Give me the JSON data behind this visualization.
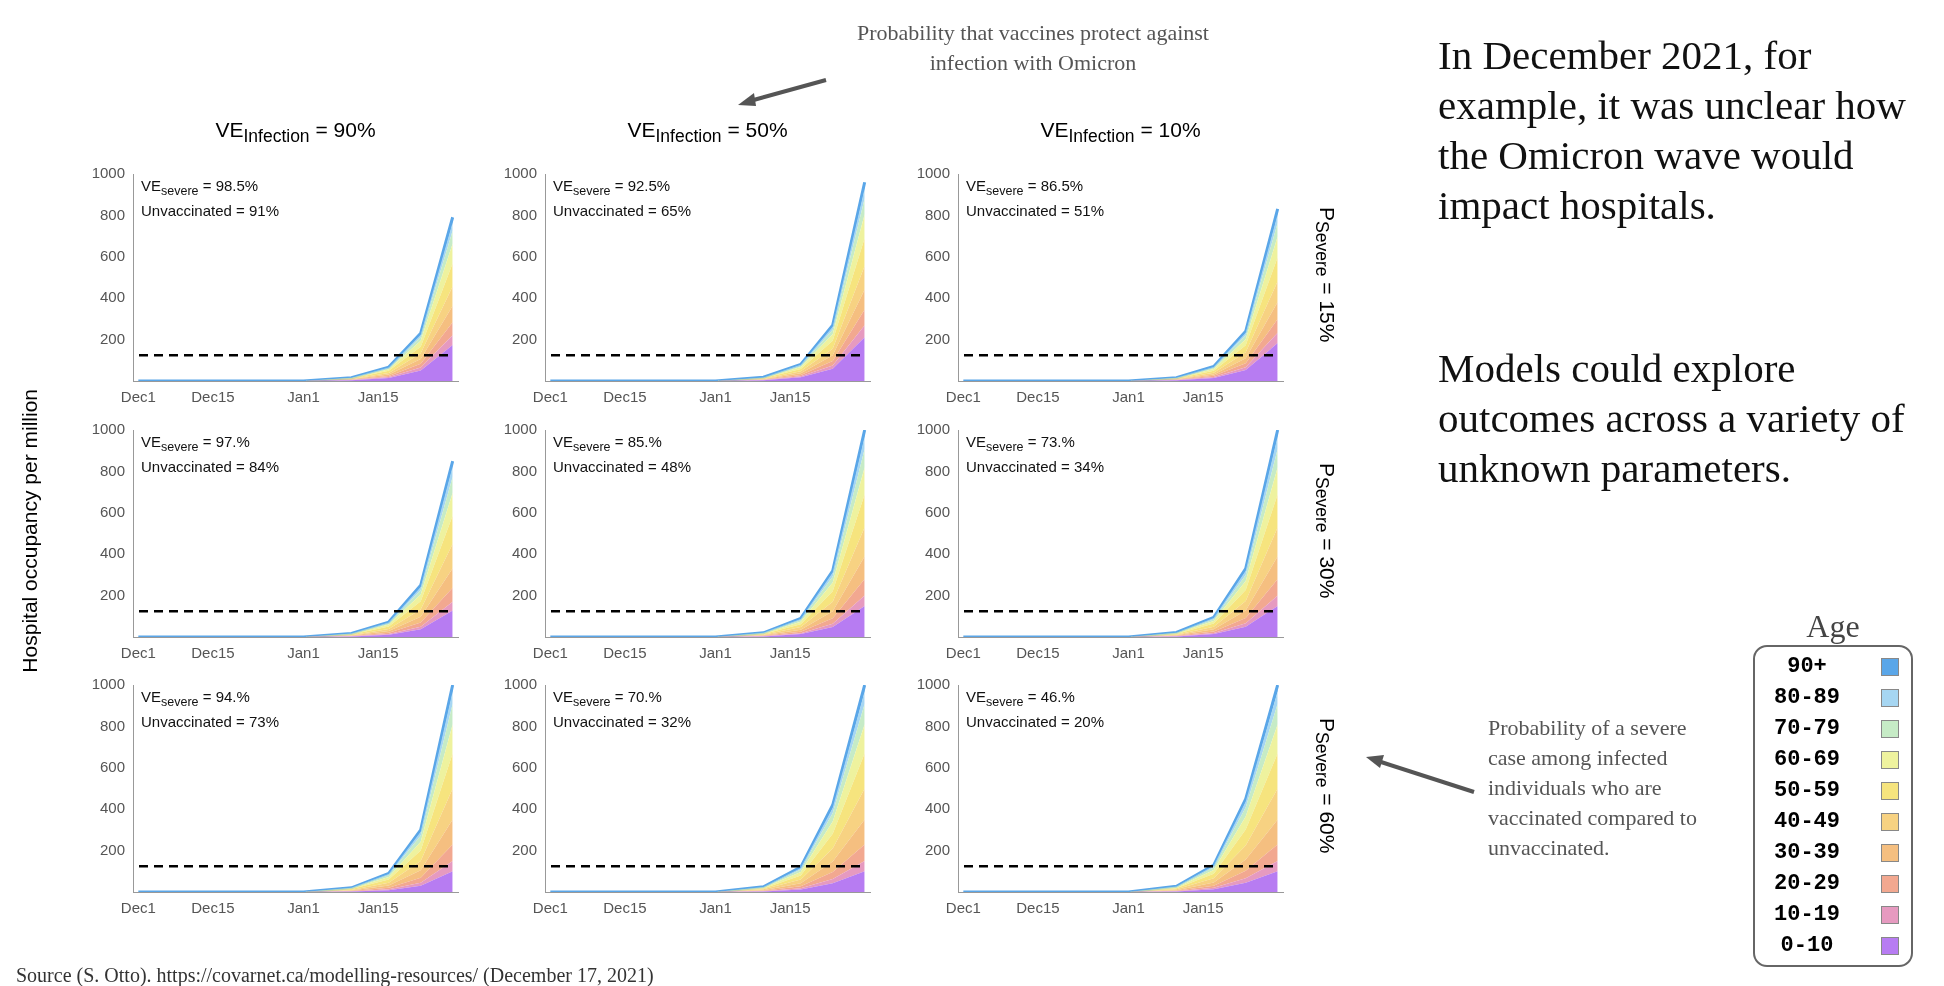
{
  "chart_data": [
    {
      "type": "area",
      "title": "VE$_{Infection}$ = 90%",
      "stacked": true,
      "marker": "none",
      "x": [
        "2021-12-01",
        "2022-01-01",
        "2022-01-10",
        "2022-01-17",
        "2022-01-23",
        "2022-01-29"
      ],
      "xlim": [
        "2021-11-30",
        "2022-01-30"
      ],
      "xticks": [
        {
          "value": "2021-12-01",
          "label": "Dec1"
        },
        {
          "value": "2021-12-15",
          "label": "Dec15"
        },
        {
          "value": "2022-01-01",
          "label": "Jan1"
        },
        {
          "value": "2022-01-15",
          "label": "Jan15"
        }
      ],
      "ylim": [
        0,
        1000
      ],
      "yticks": [
        200,
        400,
        600,
        800,
        1000
      ],
      "ref_lines": [
        {
          "axis": "y",
          "value": 125,
          "color": "#000000",
          "line_style": "dashed"
        }
      ],
      "annotations": [
        "VE$_{severe}$ = 98.5%",
        "Unvaccinated = 91%"
      ],
      "series": [
        {
          "color": "#b77cf2",
          "values": [
            0,
            0,
            4,
            15,
            51,
            174
          ]
        },
        {
          "color": "#e69ac0",
          "values": [
            0,
            0,
            1,
            4,
            14,
            47
          ]
        },
        {
          "color": "#f2a890",
          "values": [
            0,
            0,
            1,
            5,
            18,
            63
          ]
        },
        {
          "color": "#f5bf80",
          "values": [
            0,
            0,
            2,
            7,
            23,
            79
          ]
        },
        {
          "color": "#f7d282",
          "values": [
            0,
            0,
            2,
            8,
            28,
            95
          ]
        },
        {
          "color": "#f6e47e",
          "values": [
            0,
            0,
            2,
            10,
            32,
            111
          ]
        },
        {
          "color": "#eef29e",
          "values": [
            0,
            0,
            2,
            8,
            28,
            95
          ]
        },
        {
          "color": "#c6ebc6",
          "values": [
            0,
            0,
            1,
            5,
            18,
            63
          ]
        },
        {
          "color": "#a6d6f2",
          "values": [
            0,
            0,
            1,
            3,
            12,
            40
          ]
        },
        {
          "color": "#5aa6e8",
          "values": [
            0,
            0,
            0,
            2,
            7,
            24
          ]
        }
      ]
    },
    {
      "type": "area",
      "title": "VE$_{Infection}$ = 50%",
      "stacked": true,
      "marker": "none",
      "x": [
        "2021-12-01",
        "2022-01-01",
        "2022-01-10",
        "2022-01-17",
        "2022-01-23",
        "2022-01-29"
      ],
      "xlim": [
        "2021-11-30",
        "2022-01-30"
      ],
      "xticks": [
        {
          "value": "2021-12-01",
          "label": "Dec1"
        },
        {
          "value": "2021-12-15",
          "label": "Dec15"
        },
        {
          "value": "2022-01-01",
          "label": "Jan1"
        },
        {
          "value": "2022-01-15",
          "label": "Jan15"
        }
      ],
      "ylim": [
        0,
        1000
      ],
      "yticks": [
        200,
        400,
        600,
        800,
        1000
      ],
      "ref_lines": [
        {
          "axis": "y",
          "value": 125,
          "color": "#000000",
          "line_style": "dashed"
        }
      ],
      "annotations": [
        "VE$_{severe}$ = 92.5%",
        "Unvaccinated = 65%"
      ],
      "series": [
        {
          "color": "#b77cf2",
          "values": [
            0,
            0,
            4,
            18,
            59,
            211
          ]
        },
        {
          "color": "#e69ac0",
          "values": [
            0,
            0,
            1,
            5,
            16,
            58
          ]
        },
        {
          "color": "#f2a890",
          "values": [
            0,
            0,
            1,
            6,
            22,
            77
          ]
        },
        {
          "color": "#f5bf80",
          "values": [
            0,
            0,
            2,
            8,
            27,
            96
          ]
        },
        {
          "color": "#f7d282",
          "values": [
            0,
            0,
            2,
            10,
            32,
            115
          ]
        },
        {
          "color": "#f6e47e",
          "values": [
            0,
            0,
            3,
            11,
            38,
            134
          ]
        },
        {
          "color": "#eef29e",
          "values": [
            0,
            0,
            2,
            10,
            32,
            115
          ]
        },
        {
          "color": "#c6ebc6",
          "values": [
            0,
            0,
            1,
            6,
            22,
            77
          ]
        },
        {
          "color": "#a6d6f2",
          "values": [
            0,
            0,
            1,
            4,
            14,
            48
          ]
        },
        {
          "color": "#5aa6e8",
          "values": [
            0,
            0,
            1,
            2,
            8,
            29
          ]
        }
      ]
    },
    {
      "type": "area",
      "title": "VE$_{Infection}$ = 10%",
      "stacked": true,
      "marker": "none",
      "x": [
        "2021-12-01",
        "2022-01-01",
        "2022-01-10",
        "2022-01-17",
        "2022-01-23",
        "2022-01-29"
      ],
      "xlim": [
        "2021-11-30",
        "2022-01-30"
      ],
      "xticks": [
        {
          "value": "2021-12-01",
          "label": "Dec1"
        },
        {
          "value": "2021-12-15",
          "label": "Dec15"
        },
        {
          "value": "2022-01-01",
          "label": "Jan1"
        },
        {
          "value": "2022-01-15",
          "label": "Jan15"
        }
      ],
      "ylim": [
        0,
        1000
      ],
      "yticks": [
        200,
        400,
        600,
        800,
        1000
      ],
      "ref_lines": [
        {
          "axis": "y",
          "value": 125,
          "color": "#000000",
          "line_style": "dashed"
        }
      ],
      "annotations": [
        "VE$_{severe}$ = 86.5%",
        "Unvaccinated = 51%",
        "P$_{Severe}$ = 15%"
      ],
      "series": [
        {
          "color": "#b77cf2",
          "values": [
            0,
            0,
            4,
            15,
            53,
            183
          ]
        },
        {
          "color": "#e69ac0",
          "values": [
            0,
            0,
            1,
            4,
            14,
            50
          ]
        },
        {
          "color": "#f2a890",
          "values": [
            0,
            0,
            1,
            6,
            19,
            66
          ]
        },
        {
          "color": "#f5bf80",
          "values": [
            0,
            0,
            2,
            7,
            24,
            83
          ]
        },
        {
          "color": "#f7d282",
          "values": [
            0,
            0,
            2,
            8,
            29,
            100
          ]
        },
        {
          "color": "#f6e47e",
          "values": [
            0,
            0,
            2,
            10,
            34,
            116
          ]
        },
        {
          "color": "#eef29e",
          "values": [
            0,
            0,
            2,
            8,
            29,
            100
          ]
        },
        {
          "color": "#c6ebc6",
          "values": [
            0,
            0,
            1,
            6,
            19,
            66
          ]
        },
        {
          "color": "#a6d6f2",
          "values": [
            0,
            0,
            1,
            4,
            12,
            42
          ]
        },
        {
          "color": "#5aa6e8",
          "values": [
            0,
            0,
            0,
            2,
            7,
            25
          ]
        }
      ]
    },
    {
      "type": "area",
      "ylabel": "Hospital occupancy per million",
      "stacked": true,
      "marker": "none",
      "x": [
        "2021-12-01",
        "2022-01-01",
        "2022-01-10",
        "2022-01-17",
        "2022-01-23",
        "2022-01-29"
      ],
      "xlim": [
        "2021-11-30",
        "2022-01-30"
      ],
      "xticks": [
        {
          "value": "2021-12-01",
          "label": "Dec1"
        },
        {
          "value": "2021-12-15",
          "label": "Dec15"
        },
        {
          "value": "2022-01-01",
          "label": "Jan1"
        },
        {
          "value": "2022-01-15",
          "label": "Jan15"
        }
      ],
      "ylim": [
        0,
        1000
      ],
      "yticks": [
        200,
        400,
        600,
        800,
        1000
      ],
      "ref_lines": [
        {
          "axis": "y",
          "value": 125,
          "color": "#000000",
          "line_style": "dashed"
        }
      ],
      "annotations": [
        "VE$_{severe}$ = 97.%",
        "Unvaccinated = 84%"
      ],
      "series": [
        {
          "color": "#b77cf2",
          "values": [
            0,
            0,
            3,
            11,
            38,
            128
          ]
        },
        {
          "color": "#e69ac0",
          "values": [
            0,
            0,
            1,
            4,
            12,
            42
          ]
        },
        {
          "color": "#f2a890",
          "values": [
            0,
            0,
            1,
            6,
            20,
            68
          ]
        },
        {
          "color": "#f5bf80",
          "values": [
            0,
            0,
            2,
            8,
            28,
            94
          ]
        },
        {
          "color": "#f7d282",
          "values": [
            0,
            0,
            2,
            10,
            35,
            119
          ]
        },
        {
          "color": "#f6e47e",
          "values": [
            0,
            0,
            3,
            12,
            40,
            136
          ]
        },
        {
          "color": "#eef29e",
          "values": [
            0,
            0,
            2,
            9,
            32,
            110
          ]
        },
        {
          "color": "#c6ebc6",
          "values": [
            0,
            0,
            2,
            6,
            22,
            77
          ]
        },
        {
          "color": "#a6d6f2",
          "values": [
            0,
            0,
            1,
            4,
            15,
            51
          ]
        },
        {
          "color": "#5aa6e8",
          "values": [
            0,
            0,
            0,
            2,
            8,
            25
          ]
        }
      ]
    },
    {
      "type": "area",
      "stacked": true,
      "marker": "none",
      "x": [
        "2021-12-01",
        "2022-01-01",
        "2022-01-10",
        "2022-01-17",
        "2022-01-23",
        "2022-01-29"
      ],
      "xlim": [
        "2021-11-30",
        "2022-01-30"
      ],
      "xticks": [
        {
          "value": "2021-12-01",
          "label": "Dec1"
        },
        {
          "value": "2021-12-15",
          "label": "Dec15"
        },
        {
          "value": "2022-01-01",
          "label": "Jan1"
        },
        {
          "value": "2022-01-15",
          "label": "Jan15"
        }
      ],
      "ylim": [
        0,
        1000
      ],
      "yticks": [
        200,
        400,
        600,
        800,
        1000
      ],
      "ref_lines": [
        {
          "axis": "y",
          "value": 125,
          "color": "#000000",
          "line_style": "dashed"
        }
      ],
      "annotations": [
        "VE$_{severe}$ = 85.%",
        "Unvaccinated = 48%"
      ],
      "series": [
        {
          "color": "#b77cf2",
          "values": [
            0,
            0,
            3,
            14,
            48,
            150
          ]
        },
        {
          "color": "#e69ac0",
          "values": [
            0,
            0,
            1,
            4,
            16,
            50
          ]
        },
        {
          "color": "#f2a890",
          "values": [
            0,
            0,
            2,
            7,
            26,
            80
          ]
        },
        {
          "color": "#f5bf80",
          "values": [
            0,
            0,
            2,
            10,
            35,
            110
          ]
        },
        {
          "color": "#f7d282",
          "values": [
            0,
            0,
            3,
            13,
            45,
            140
          ]
        },
        {
          "color": "#f6e47e",
          "values": [
            0,
            0,
            3,
            14,
            51,
            160
          ]
        },
        {
          "color": "#eef29e",
          "values": [
            0,
            0,
            3,
            12,
            42,
            130
          ]
        },
        {
          "color": "#c6ebc6",
          "values": [
            0,
            0,
            2,
            8,
            29,
            90
          ]
        },
        {
          "color": "#a6d6f2",
          "values": [
            0,
            0,
            1,
            5,
            19,
            60
          ]
        },
        {
          "color": "#5aa6e8",
          "values": [
            0,
            0,
            0,
            3,
            9,
            30
          ]
        }
      ]
    },
    {
      "type": "area",
      "stacked": true,
      "marker": "none",
      "x": [
        "2021-12-01",
        "2022-01-01",
        "2022-01-10",
        "2022-01-17",
        "2022-01-23",
        "2022-01-29"
      ],
      "xlim": [
        "2021-11-30",
        "2022-01-30"
      ],
      "xticks": [
        {
          "value": "2021-12-01",
          "label": "Dec1"
        },
        {
          "value": "2021-12-15",
          "label": "Dec15"
        },
        {
          "value": "2022-01-01",
          "label": "Jan1"
        },
        {
          "value": "2022-01-15",
          "label": "Jan15"
        }
      ],
      "ylim": [
        0,
        1000
      ],
      "yticks": [
        200,
        400,
        600,
        800,
        1000
      ],
      "ref_lines": [
        {
          "axis": "y",
          "value": 125,
          "color": "#000000",
          "line_style": "dashed"
        }
      ],
      "annotations": [
        "VE$_{severe}$ = 73.%",
        "Unvaccinated = 34%",
        "P$_{Severe}$ = 30%"
      ],
      "series": [
        {
          "color": "#b77cf2",
          "values": [
            0,
            0,
            3,
            14,
            50,
            150
          ]
        },
        {
          "color": "#e69ac0",
          "values": [
            0,
            0,
            1,
            5,
            16,
            50
          ]
        },
        {
          "color": "#f2a890",
          "values": [
            0,
            0,
            2,
            8,
            26,
            80
          ]
        },
        {
          "color": "#f5bf80",
          "values": [
            0,
            0,
            2,
            10,
            36,
            110
          ]
        },
        {
          "color": "#f7d282",
          "values": [
            0,
            0,
            3,
            13,
            46,
            140
          ]
        },
        {
          "color": "#f6e47e",
          "values": [
            0,
            0,
            4,
            15,
            53,
            160
          ]
        },
        {
          "color": "#eef29e",
          "values": [
            0,
            0,
            3,
            12,
            43,
            130
          ]
        },
        {
          "color": "#c6ebc6",
          "values": [
            0,
            0,
            2,
            9,
            30,
            90
          ]
        },
        {
          "color": "#a6d6f2",
          "values": [
            0,
            0,
            1,
            6,
            20,
            60
          ]
        },
        {
          "color": "#5aa6e8",
          "values": [
            0,
            0,
            1,
            3,
            10,
            30
          ]
        }
      ]
    },
    {
      "type": "area",
      "stacked": true,
      "marker": "none",
      "x": [
        "2021-12-01",
        "2022-01-01",
        "2022-01-10",
        "2022-01-17",
        "2022-01-23",
        "2022-01-29"
      ],
      "xlim": [
        "2021-11-30",
        "2022-01-30"
      ],
      "xticks": [
        {
          "value": "2021-12-01",
          "label": "Dec1"
        },
        {
          "value": "2021-12-15",
          "label": "Dec15"
        },
        {
          "value": "2022-01-01",
          "label": "Jan1"
        },
        {
          "value": "2022-01-15",
          "label": "Jan15"
        }
      ],
      "ylim": [
        0,
        1000
      ],
      "yticks": [
        200,
        400,
        600,
        800,
        1000
      ],
      "ref_lines": [
        {
          "axis": "y",
          "value": 125,
          "color": "#000000",
          "line_style": "dashed"
        }
      ],
      "annotations": [
        "VE$_{severe}$ = 94.%",
        "Unvaccinated = 73%"
      ],
      "series": [
        {
          "color": "#b77cf2",
          "values": [
            0,
            0,
            2,
            9,
            30,
            100
          ]
        },
        {
          "color": "#e69ac0",
          "values": [
            0,
            0,
            1,
            4,
            15,
            50
          ]
        },
        {
          "color": "#f2a890",
          "values": [
            0,
            0,
            2,
            7,
            24,
            80
          ]
        },
        {
          "color": "#f5bf80",
          "values": [
            0,
            0,
            2,
            11,
            36,
            120
          ]
        },
        {
          "color": "#f7d282",
          "values": [
            0,
            0,
            3,
            14,
            45,
            150
          ]
        },
        {
          "color": "#f6e47e",
          "values": [
            0,
            0,
            4,
            15,
            51,
            170
          ]
        },
        {
          "color": "#eef29e",
          "values": [
            0,
            0,
            3,
            13,
            42,
            140
          ]
        },
        {
          "color": "#c6ebc6",
          "values": [
            0,
            0,
            2,
            9,
            30,
            100
          ]
        },
        {
          "color": "#a6d6f2",
          "values": [
            0,
            0,
            1,
            5,
            18,
            60
          ]
        },
        {
          "color": "#5aa6e8",
          "values": [
            0,
            0,
            0,
            3,
            9,
            30
          ]
        }
      ]
    },
    {
      "type": "area",
      "stacked": true,
      "marker": "none",
      "x": [
        "2021-12-01",
        "2022-01-01",
        "2022-01-10",
        "2022-01-17",
        "2022-01-23",
        "2022-01-29"
      ],
      "xlim": [
        "2021-11-30",
        "2022-01-30"
      ],
      "xticks": [
        {
          "value": "2021-12-01",
          "label": "Dec1"
        },
        {
          "value": "2021-12-15",
          "label": "Dec15"
        },
        {
          "value": "2022-01-01",
          "label": "Jan1"
        },
        {
          "value": "2022-01-15",
          "label": "Jan15"
        }
      ],
      "ylim": [
        0,
        1000
      ],
      "yticks": [
        200,
        400,
        600,
        800,
        1000
      ],
      "ref_lines": [
        {
          "axis": "y",
          "value": 125,
          "color": "#000000",
          "line_style": "dashed"
        }
      ],
      "annotations": [
        "VE$_{severe}$ = 70.%",
        "Unvaccinated = 32%"
      ],
      "series": [
        {
          "color": "#b77cf2",
          "values": [
            0,
            0,
            3,
            12,
            42,
            100
          ]
        },
        {
          "color": "#e69ac0",
          "values": [
            0,
            0,
            1,
            6,
            21,
            50
          ]
        },
        {
          "color": "#f2a890",
          "values": [
            0,
            0,
            2,
            10,
            34,
            80
          ]
        },
        {
          "color": "#f5bf80",
          "values": [
            0,
            0,
            3,
            14,
            50,
            120
          ]
        },
        {
          "color": "#f7d282",
          "values": [
            0,
            0,
            4,
            18,
            63,
            150
          ]
        },
        {
          "color": "#f6e47e",
          "values": [
            0,
            0,
            4,
            20,
            71,
            170
          ]
        },
        {
          "color": "#eef29e",
          "values": [
            0,
            0,
            4,
            17,
            59,
            140
          ]
        },
        {
          "color": "#c6ebc6",
          "values": [
            0,
            0,
            2,
            12,
            42,
            100
          ]
        },
        {
          "color": "#a6d6f2",
          "values": [
            0,
            0,
            1,
            7,
            25,
            60
          ]
        },
        {
          "color": "#5aa6e8",
          "values": [
            0,
            0,
            1,
            4,
            13,
            30
          ]
        }
      ]
    },
    {
      "type": "area",
      "stacked": true,
      "marker": "none",
      "legend": "right",
      "legend_title": "Age",
      "x": [
        "2021-12-01",
        "2022-01-01",
        "2022-01-10",
        "2022-01-17",
        "2022-01-23",
        "2022-01-29"
      ],
      "xlim": [
        "2021-11-30",
        "2022-01-30"
      ],
      "xticks": [
        {
          "value": "2021-12-01",
          "label": "Dec1"
        },
        {
          "value": "2021-12-15",
          "label": "Dec15"
        },
        {
          "value": "2022-01-01",
          "label": "Jan1"
        },
        {
          "value": "2022-01-15",
          "label": "Jan15"
        }
      ],
      "ylim": [
        0,
        1000
      ],
      "yticks": [
        200,
        400,
        600,
        800,
        1000
      ],
      "ref_lines": [
        {
          "axis": "y",
          "value": 125,
          "color": "#000000",
          "line_style": "dashed"
        }
      ],
      "annotations": [
        "VE$_{severe}$ = 46.%",
        "Unvaccinated = 20%",
        "P$_{Severe}$ = 60%"
      ],
      "series": [
        {
          "name": "0-10",
          "color": "#b77cf2",
          "values": [
            0,
            0,
            3,
            13,
            45,
            100
          ]
        },
        {
          "name": "10-19",
          "color": "#e69ac0",
          "values": [
            0,
            0,
            1,
            7,
            22,
            50
          ]
        },
        {
          "name": "20-29",
          "color": "#f2a890",
          "values": [
            0,
            0,
            2,
            10,
            36,
            80
          ]
        },
        {
          "name": "30-39",
          "color": "#f5bf80",
          "values": [
            0,
            0,
            3,
            16,
            54,
            120
          ]
        },
        {
          "name": "40-49",
          "color": "#f7d282",
          "values": [
            0,
            0,
            4,
            20,
            68,
            150
          ]
        },
        {
          "name": "50-59",
          "color": "#f6e47e",
          "values": [
            0,
            0,
            5,
            22,
            77,
            170
          ]
        },
        {
          "name": "60-69",
          "color": "#eef29e",
          "values": [
            0,
            0,
            4,
            18,
            63,
            140
          ]
        },
        {
          "name": "70-79",
          "color": "#c6ebc6",
          "values": [
            0,
            0,
            3,
            13,
            45,
            100
          ]
        },
        {
          "name": "80-89",
          "color": "#a6d6f2",
          "values": [
            0,
            0,
            2,
            8,
            27,
            60
          ]
        },
        {
          "name": "90+",
          "color": "#5aa6e8",
          "values": [
            0,
            0,
            1,
            3,
            13,
            30
          ]
        }
      ]
    },
    {
      "type": "other",
      "annotations": [
        "In December 2021, for example, it was unclear how the Omicron wave would impact hospitals.",
        "Models could explore outcomes across a variety of unknown parameters.",
        "Probability that vaccines protect against infection with Omicron",
        "Probability of a severe case among infected individuals who are vaccinated compared to unvaccinated.",
        "Source (S. Otto). https://covarnet.ca/modelling-resources/ (December 17, 2021)"
      ]
    }
  ]
}
